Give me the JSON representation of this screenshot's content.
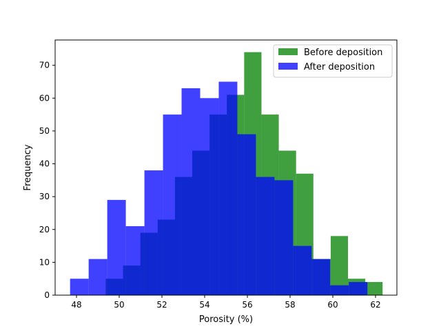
{
  "chart_data": {
    "type": "bar",
    "subtype": "overlapping histogram",
    "title": "",
    "xlabel": "Porosity (%)",
    "ylabel": "Frequency",
    "xlim": [
      47.0,
      63.0
    ],
    "ylim": [
      0,
      77.7
    ],
    "xticks": [
      48,
      50,
      52,
      54,
      56,
      58,
      60,
      62
    ],
    "yticks": [
      0,
      10,
      20,
      30,
      40,
      50,
      60,
      70
    ],
    "grid": false,
    "legend_position": "top-right",
    "series": [
      {
        "name": "Before deposition",
        "color": "#008000",
        "alpha": 0.75,
        "bin_edges": [
          49.37,
          50.18,
          50.99,
          51.8,
          52.61,
          53.42,
          54.23,
          55.04,
          55.85,
          56.66,
          57.47,
          58.28,
          59.09,
          59.9,
          60.71,
          61.52,
          62.33
        ],
        "values": [
          5,
          9,
          19,
          23,
          36,
          44,
          55,
          61,
          74,
          55,
          44,
          37,
          11,
          18,
          5,
          4
        ]
      },
      {
        "name": "After deposition",
        "color": "#0000ff",
        "alpha": 0.75,
        "bin_edges": [
          47.7,
          48.57,
          49.44,
          50.31,
          51.18,
          52.05,
          52.92,
          53.79,
          54.66,
          55.53,
          56.4,
          57.27,
          58.14,
          59.01,
          59.88,
          60.75,
          61.62
        ],
        "values": [
          5,
          11,
          29,
          21,
          38,
          55,
          63,
          60,
          65,
          49,
          36,
          35,
          15,
          11,
          3,
          4
        ]
      }
    ]
  }
}
